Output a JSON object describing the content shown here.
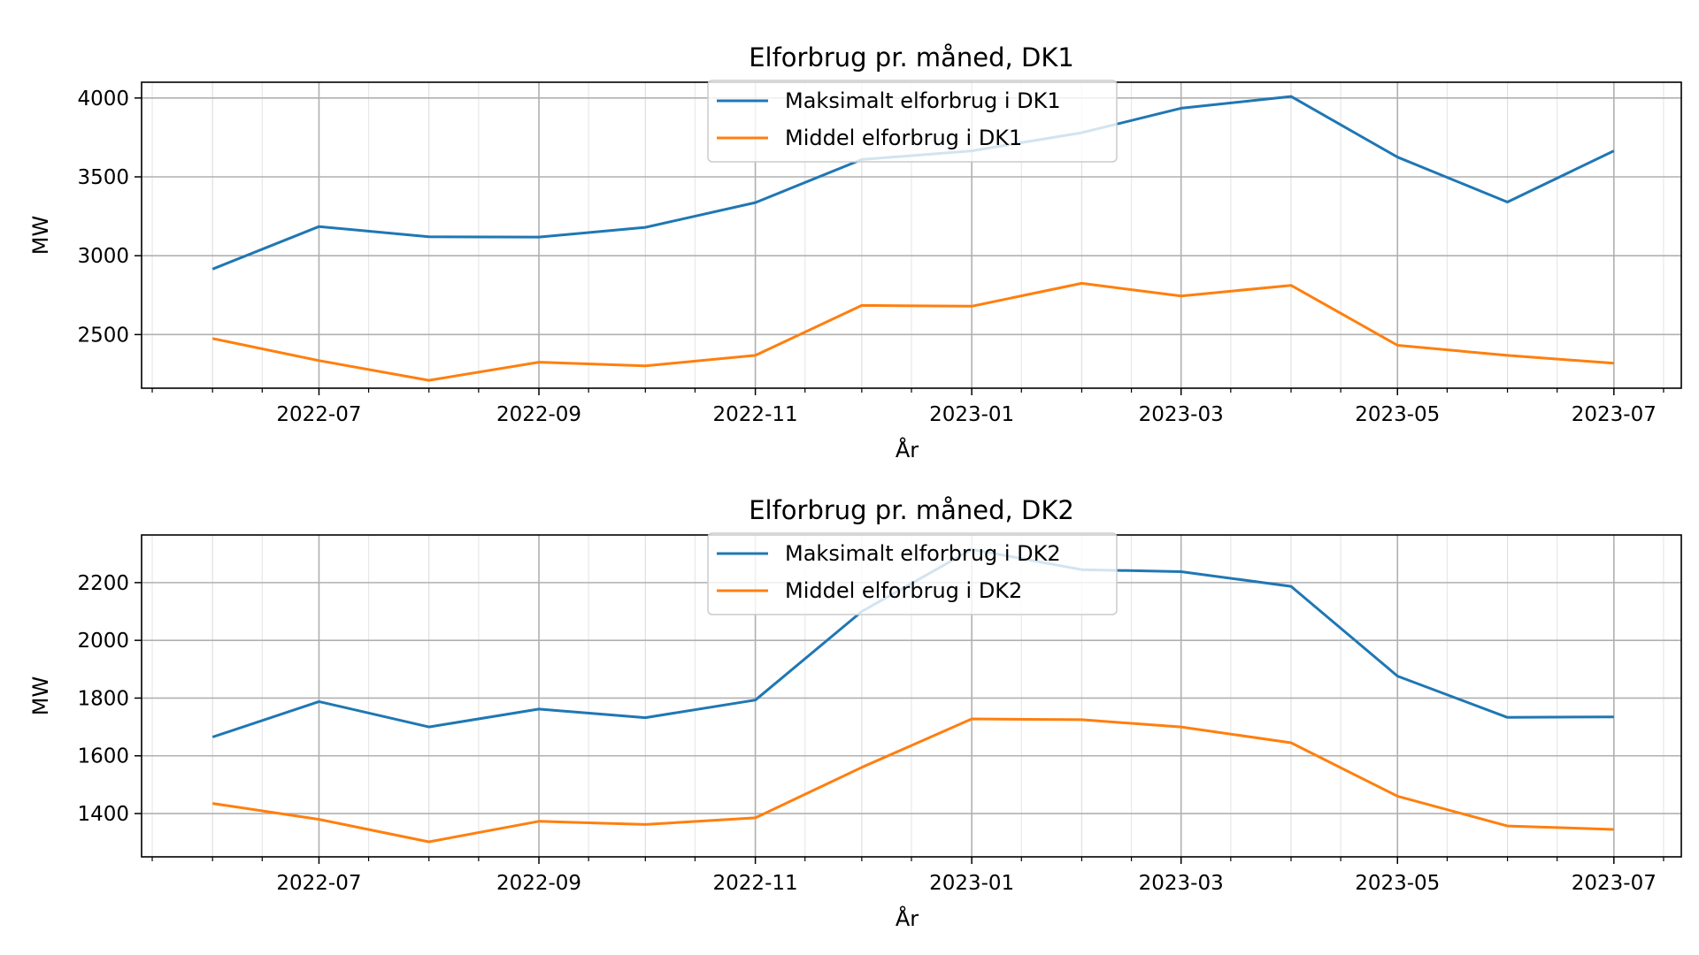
{
  "chart_data": [
    {
      "type": "line",
      "title": "Elforbrug pr. måned, DK1",
      "xlabel": "År",
      "ylabel": "MW",
      "x_tick_labels": [
        "2022-07",
        "2022-09",
        "2022-11",
        "2023-01",
        "2023-03",
        "2023-05",
        "2023-07"
      ],
      "y_tick_labels": [
        "2500",
        "3000",
        "3500",
        "4000"
      ],
      "y_ticks": [
        2500,
        3000,
        3500,
        4000
      ],
      "ylim": [
        2160,
        4100
      ],
      "xlim": [
        "2022-05-12",
        "2023-07-20"
      ],
      "x": [
        "2022-06-01",
        "2022-07-01",
        "2022-08-01",
        "2022-09-01",
        "2022-10-01",
        "2022-11-01",
        "2022-12-01",
        "2023-01-01",
        "2023-02-01",
        "2023-03-01",
        "2023-04-01",
        "2023-05-01",
        "2023-06-01",
        "2023-07-01"
      ],
      "grid": true,
      "legend_position": "top-center",
      "series": [
        {
          "name": "Maksimalt elforbrug i DK1",
          "color": "#1f77b4",
          "values": [
            2915,
            3185,
            3120,
            3118,
            3180,
            3337,
            3610,
            3665,
            3780,
            3935,
            4010,
            3625,
            3340,
            3665
          ]
        },
        {
          "name": "Middel elforbrug i DK1",
          "color": "#ff7f0e",
          "values": [
            2475,
            2335,
            2210,
            2325,
            2302,
            2368,
            2685,
            2680,
            2825,
            2745,
            2812,
            2432,
            2368,
            2318
          ]
        }
      ]
    },
    {
      "type": "line",
      "title": "Elforbrug pr. måned, DK2",
      "xlabel": "År",
      "ylabel": "MW",
      "x_tick_labels": [
        "2022-07",
        "2022-09",
        "2022-11",
        "2023-01",
        "2023-03",
        "2023-05",
        "2023-07"
      ],
      "y_tick_labels": [
        "1400",
        "1600",
        "1800",
        "2000",
        "2200"
      ],
      "y_ticks": [
        1400,
        1600,
        1800,
        2000,
        2200
      ],
      "ylim": [
        1250,
        2365
      ],
      "xlim": [
        "2022-05-12",
        "2023-07-20"
      ],
      "x": [
        "2022-06-01",
        "2022-07-01",
        "2022-08-01",
        "2022-09-01",
        "2022-10-01",
        "2022-11-01",
        "2022-12-01",
        "2023-01-01",
        "2023-02-01",
        "2023-03-01",
        "2023-04-01",
        "2023-05-01",
        "2023-06-01",
        "2023-07-01"
      ],
      "grid": true,
      "legend_position": "top-center",
      "series": [
        {
          "name": "Maksimalt elforbrug i DK2",
          "color": "#1f77b4",
          "values": [
            1665,
            1788,
            1700,
            1762,
            1732,
            1793,
            2100,
            2315,
            2245,
            2238,
            2187,
            1876,
            1733,
            1735
          ]
        },
        {
          "name": "Middel elforbrug i DK2",
          "color": "#ff7f0e",
          "values": [
            1435,
            1380,
            1302,
            1373,
            1362,
            1385,
            1560,
            1728,
            1725,
            1700,
            1645,
            1460,
            1357,
            1345
          ]
        }
      ]
    }
  ]
}
